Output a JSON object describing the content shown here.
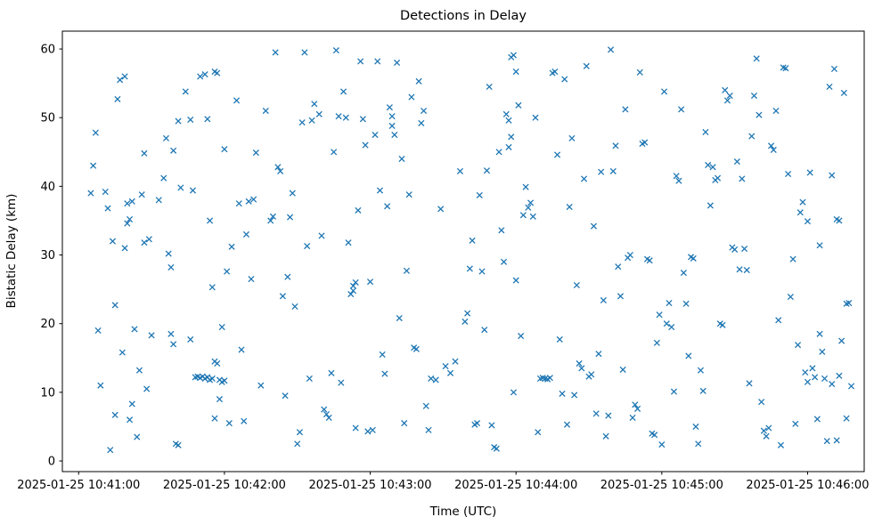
{
  "figure": {
    "title": "Detections in Delay",
    "xlabel": "Time (UTC)",
    "ylabel": "Bistatic Delay (km)"
  },
  "chart_data": {
    "type": "scatter",
    "title": "Detections in Delay",
    "xlabel": "Time (UTC)",
    "ylabel": "Bistatic Delay (km)",
    "marker": "x",
    "marker_color": "#1f77b4",
    "grid": false,
    "legend": "none",
    "x_unit": "seconds after 2025-01-25 10:41:00 UTC",
    "x_tick_labels": [
      "2025-01-25 10:41:00",
      "2025-01-25 10:42:00",
      "2025-01-25 10:43:00",
      "2025-01-25 10:44:00",
      "2025-01-25 10:45:00",
      "2025-01-25 10:46:00"
    ],
    "x_ticks_seconds": [
      0,
      60,
      120,
      180,
      240,
      300
    ],
    "y_tick_labels": [
      "0",
      "10",
      "20",
      "30",
      "40",
      "50",
      "60"
    ],
    "y_ticks": [
      0,
      10,
      20,
      30,
      40,
      50,
      60
    ],
    "xlim_seconds": [
      -6.7,
      323.3
    ],
    "ylim": [
      -1.55,
      62.6
    ],
    "points": [
      [
        7,
        47.8
      ],
      [
        6,
        43
      ],
      [
        5,
        39
      ],
      [
        11,
        39.2
      ],
      [
        8,
        19
      ],
      [
        9,
        11
      ],
      [
        13,
        1.6
      ],
      [
        12,
        36.8
      ],
      [
        14,
        32
      ],
      [
        16,
        52.7
      ],
      [
        17,
        55.5
      ],
      [
        19,
        56
      ],
      [
        15,
        22.7
      ],
      [
        18,
        15.8
      ],
      [
        15,
        6.7
      ],
      [
        20,
        37.5
      ],
      [
        22,
        37.8
      ],
      [
        21,
        35.2
      ],
      [
        20,
        34.6
      ],
      [
        19,
        31
      ],
      [
        22,
        8.3
      ],
      [
        21,
        6
      ],
      [
        23,
        19.2
      ],
      [
        25,
        13.2
      ],
      [
        24,
        3.5
      ],
      [
        26,
        38.8
      ],
      [
        27,
        44.8
      ],
      [
        27,
        31.8
      ],
      [
        29,
        32.3
      ],
      [
        28,
        10.5
      ],
      [
        30,
        18.3
      ],
      [
        33,
        38
      ],
      [
        35,
        41.2
      ],
      [
        36,
        47
      ],
      [
        37,
        30.2
      ],
      [
        38,
        28.2
      ],
      [
        38,
        18.5
      ],
      [
        39,
        17
      ],
      [
        40,
        2.5
      ],
      [
        41,
        2.3
      ],
      [
        39,
        45.2
      ],
      [
        41,
        49.5
      ],
      [
        42,
        39.8
      ],
      [
        44,
        53.8
      ],
      [
        46,
        49.7
      ],
      [
        47,
        39.4
      ],
      [
        46,
        17.7
      ],
      [
        48,
        12.2
      ],
      [
        49,
        12.3
      ],
      [
        50,
        12.1
      ],
      [
        51,
        12.3
      ],
      [
        52,
        12
      ],
      [
        53,
        12.2
      ],
      [
        54,
        11.8
      ],
      [
        55,
        12
      ],
      [
        50,
        56
      ],
      [
        52,
        56.3
      ],
      [
        56,
        56.7
      ],
      [
        57,
        56.5
      ],
      [
        53,
        49.8
      ],
      [
        54,
        35
      ],
      [
        55,
        25.3
      ],
      [
        56,
        14.5
      ],
      [
        57,
        14.2
      ],
      [
        56,
        6.2
      ],
      [
        58,
        11.8
      ],
      [
        59,
        11.5
      ],
      [
        60,
        11.7
      ],
      [
        58,
        9
      ],
      [
        59,
        19.5
      ],
      [
        60,
        45.4
      ],
      [
        61,
        27.6
      ],
      [
        62,
        5.5
      ],
      [
        63,
        31.2
      ],
      [
        65,
        52.5
      ],
      [
        66,
        37.5
      ],
      [
        67,
        16.2
      ],
      [
        68,
        5.8
      ],
      [
        69,
        33
      ],
      [
        70,
        37.8
      ],
      [
        72,
        38.1
      ],
      [
        71,
        26.5
      ],
      [
        73,
        44.9
      ],
      [
        75,
        11
      ],
      [
        77,
        51
      ],
      [
        79,
        35
      ],
      [
        80,
        35.6
      ],
      [
        81,
        59.5
      ],
      [
        82,
        42.8
      ],
      [
        83,
        42.2
      ],
      [
        84,
        24
      ],
      [
        85,
        9.5
      ],
      [
        86,
        26.8
      ],
      [
        87,
        35.5
      ],
      [
        88,
        39
      ],
      [
        89,
        22.5
      ],
      [
        90,
        2.5
      ],
      [
        91,
        4.2
      ],
      [
        92,
        49.3
      ],
      [
        93,
        59.5
      ],
      [
        94,
        31.3
      ],
      [
        95,
        12
      ],
      [
        96,
        49.6
      ],
      [
        97,
        52
      ],
      [
        99,
        50.5
      ],
      [
        100,
        32.8
      ],
      [
        101,
        7.5
      ],
      [
        102,
        6.8
      ],
      [
        103,
        6.3
      ],
      [
        104,
        12.8
      ],
      [
        105,
        45
      ],
      [
        106,
        59.8
      ],
      [
        107,
        50.2
      ],
      [
        108,
        11.4
      ],
      [
        109,
        53.8
      ],
      [
        110,
        50
      ],
      [
        111,
        31.8
      ],
      [
        112,
        24.3
      ],
      [
        113,
        25.5
      ],
      [
        114,
        26
      ],
      [
        113,
        24.8
      ],
      [
        114,
        4.8
      ],
      [
        115,
        36.5
      ],
      [
        116,
        58.2
      ],
      [
        117,
        49.8
      ],
      [
        118,
        46
      ],
      [
        119,
        4.3
      ],
      [
        120,
        26.1
      ],
      [
        121,
        4.5
      ],
      [
        122,
        47.5
      ],
      [
        123,
        58.2
      ],
      [
        124,
        39.4
      ],
      [
        125,
        15.5
      ],
      [
        126,
        12.7
      ],
      [
        127,
        37.1
      ],
      [
        128,
        51.5
      ],
      [
        129,
        50.2
      ],
      [
        129,
        48.8
      ],
      [
        130,
        47.5
      ],
      [
        131,
        58
      ],
      [
        132,
        20.8
      ],
      [
        133,
        44
      ],
      [
        134,
        5.5
      ],
      [
        135,
        27.7
      ],
      [
        136,
        38.8
      ],
      [
        137,
        53
      ],
      [
        138,
        16.5
      ],
      [
        139,
        16.3
      ],
      [
        140,
        55.3
      ],
      [
        141,
        49.2
      ],
      [
        142,
        51
      ],
      [
        143,
        8
      ],
      [
        144,
        4.5
      ],
      [
        145,
        12
      ],
      [
        147,
        11.8
      ],
      [
        149,
        36.7
      ],
      [
        151,
        13.8
      ],
      [
        153,
        12.8
      ],
      [
        155,
        14.5
      ],
      [
        157,
        42.2
      ],
      [
        159,
        20.3
      ],
      [
        160,
        21.5
      ],
      [
        161,
        28
      ],
      [
        162,
        32.1
      ],
      [
        163,
        5.3
      ],
      [
        164,
        5.5
      ],
      [
        165,
        38.7
      ],
      [
        166,
        27.6
      ],
      [
        167,
        19.1
      ],
      [
        168,
        42.3
      ],
      [
        169,
        54.5
      ],
      [
        170,
        5.2
      ],
      [
        171,
        2
      ],
      [
        172,
        1.8
      ],
      [
        173,
        45
      ],
      [
        174,
        33.6
      ],
      [
        175,
        29
      ],
      [
        176,
        50.5
      ],
      [
        177,
        49.6
      ],
      [
        178,
        58.8
      ],
      [
        179,
        59.1
      ],
      [
        180,
        56.7
      ],
      [
        178,
        47.2
      ],
      [
        177,
        45.7
      ],
      [
        180,
        26.3
      ],
      [
        179,
        10
      ],
      [
        181,
        51.8
      ],
      [
        182,
        18.2
      ],
      [
        183,
        35.8
      ],
      [
        184,
        39.9
      ],
      [
        185,
        36.9
      ],
      [
        186,
        37.6
      ],
      [
        187,
        35.6
      ],
      [
        188,
        50
      ],
      [
        189,
        4.2
      ],
      [
        190,
        12
      ],
      [
        191,
        12.1
      ],
      [
        192,
        12
      ],
      [
        193,
        11.9
      ],
      [
        194,
        12.1
      ],
      [
        195,
        56.5
      ],
      [
        196,
        56.7
      ],
      [
        197,
        44.6
      ],
      [
        198,
        17.7
      ],
      [
        199,
        9.8
      ],
      [
        200,
        55.6
      ],
      [
        201,
        5.3
      ],
      [
        202,
        37
      ],
      [
        203,
        47
      ],
      [
        204,
        9.6
      ],
      [
        205,
        25.6
      ],
      [
        206,
        14.2
      ],
      [
        207,
        13.5
      ],
      [
        208,
        41.1
      ],
      [
        209,
        57.5
      ],
      [
        210,
        12.3
      ],
      [
        211,
        12.6
      ],
      [
        212,
        34.2
      ],
      [
        213,
        6.9
      ],
      [
        214,
        15.6
      ],
      [
        215,
        42.1
      ],
      [
        216,
        23.4
      ],
      [
        217,
        3.6
      ],
      [
        218,
        6.6
      ],
      [
        219,
        59.9
      ],
      [
        220,
        42.2
      ],
      [
        221,
        45.9
      ],
      [
        222,
        28.3
      ],
      [
        223,
        24
      ],
      [
        224,
        13.3
      ],
      [
        225,
        51.2
      ],
      [
        226,
        29.6
      ],
      [
        227,
        30
      ],
      [
        228,
        6.3
      ],
      [
        229,
        8.2
      ],
      [
        230,
        7.6
      ],
      [
        231,
        56.6
      ],
      [
        232,
        46.2
      ],
      [
        233,
        46.4
      ],
      [
        234,
        29.4
      ],
      [
        235,
        29.2
      ],
      [
        236,
        4
      ],
      [
        237,
        3.8
      ],
      [
        238,
        17.2
      ],
      [
        239,
        21.3
      ],
      [
        240,
        2.4
      ],
      [
        241,
        53.8
      ],
      [
        242,
        20
      ],
      [
        243,
        23
      ],
      [
        244,
        19.5
      ],
      [
        245,
        10.1
      ],
      [
        246,
        41.5
      ],
      [
        247,
        40.8
      ],
      [
        248,
        51.2
      ],
      [
        249,
        27.4
      ],
      [
        250,
        22.9
      ],
      [
        251,
        15.3
      ],
      [
        252,
        29.7
      ],
      [
        253,
        29.5
      ],
      [
        254,
        5
      ],
      [
        255,
        2.5
      ],
      [
        256,
        13.2
      ],
      [
        257,
        10.2
      ],
      [
        258,
        47.9
      ],
      [
        259,
        43.1
      ],
      [
        260,
        37.2
      ],
      [
        261,
        42.8
      ],
      [
        262,
        40.9
      ],
      [
        263,
        41.2
      ],
      [
        264,
        20
      ],
      [
        265,
        19.8
      ],
      [
        266,
        54
      ],
      [
        267,
        52.5
      ],
      [
        268,
        53.2
      ],
      [
        269,
        31.1
      ],
      [
        270,
        30.8
      ],
      [
        271,
        43.6
      ],
      [
        272,
        27.9
      ],
      [
        273,
        41.1
      ],
      [
        274,
        30.9
      ],
      [
        275,
        27.8
      ],
      [
        276,
        11.3
      ],
      [
        277,
        47.3
      ],
      [
        278,
        53.2
      ],
      [
        279,
        58.6
      ],
      [
        280,
        50.4
      ],
      [
        281,
        8.6
      ],
      [
        282,
        4.4
      ],
      [
        283,
        3.6
      ],
      [
        284,
        4.8
      ],
      [
        285,
        45.9
      ],
      [
        286,
        45.3
      ],
      [
        287,
        51
      ],
      [
        288,
        20.5
      ],
      [
        289,
        2.3
      ],
      [
        290,
        57.3
      ],
      [
        291,
        57.2
      ],
      [
        292,
        41.8
      ],
      [
        293,
        23.9
      ],
      [
        294,
        29.4
      ],
      [
        295,
        5.4
      ],
      [
        296,
        16.9
      ],
      [
        297,
        36.2
      ],
      [
        298,
        37.7
      ],
      [
        299,
        12.9
      ],
      [
        300,
        11.5
      ],
      [
        301,
        42
      ],
      [
        302,
        13.5
      ],
      [
        303,
        12.2
      ],
      [
        304,
        6.1
      ],
      [
        305,
        18.5
      ],
      [
        306,
        15.9
      ],
      [
        307,
        12
      ],
      [
        308,
        2.9
      ],
      [
        309,
        54.5
      ],
      [
        310,
        41.6
      ],
      [
        300,
        34.9
      ],
      [
        305,
        31.4
      ],
      [
        311,
        57.1
      ],
      [
        312,
        35.2
      ],
      [
        313,
        35
      ],
      [
        314,
        17.5
      ],
      [
        315,
        53.6
      ],
      [
        316,
        22.9
      ],
      [
        317,
        23
      ],
      [
        318,
        10.9
      ],
      [
        313,
        12.4
      ],
      [
        310,
        11.2
      ],
      [
        312,
        3
      ],
      [
        316,
        6.2
      ]
    ]
  }
}
